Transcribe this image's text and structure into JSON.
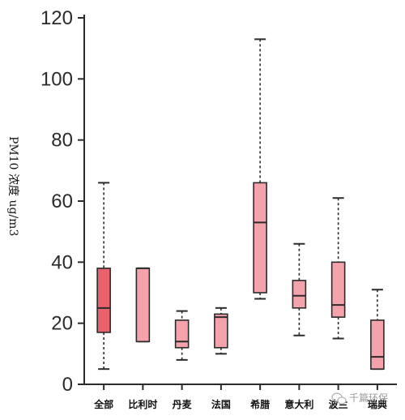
{
  "chart_data": {
    "type": "box",
    "title": "",
    "ylabel": "PM10 浓度   ug/m3",
    "xlabel": "",
    "ylim": [
      0,
      120
    ],
    "yticks": [
      0,
      20,
      40,
      60,
      80,
      100,
      120
    ],
    "grid": false,
    "legend": "none",
    "colors": {
      "first_box": "#e8616b",
      "boxes": "#f4a3aa",
      "stroke": "#2b2b2b"
    },
    "categories": [
      "全部",
      "比利时",
      "丹麦",
      "法国",
      "希腊",
      "意大利",
      "波兰",
      "瑞典"
    ],
    "boxes": [
      {
        "min": 5,
        "q1": 17,
        "median": 25,
        "q3": 38,
        "max": 66
      },
      {
        "min": 14,
        "q1": 14,
        "median": 38,
        "q3": 38,
        "max": 38
      },
      {
        "min": 8,
        "q1": 12,
        "median": 14,
        "q3": 21,
        "max": 24
      },
      {
        "min": 10,
        "q1": 12,
        "median": 22,
        "q3": 23,
        "max": 25
      },
      {
        "min": 28,
        "q1": 30,
        "median": 53,
        "q3": 66,
        "max": 113
      },
      {
        "min": 16,
        "q1": 25,
        "median": 29,
        "q3": 34,
        "max": 46
      },
      {
        "min": 15,
        "q1": 22,
        "median": 26,
        "q3": 40,
        "max": 61
      },
      {
        "min": 5,
        "q1": 5,
        "median": 9,
        "q3": 21,
        "max": 31
      }
    ]
  },
  "watermark": {
    "icon": "wechat-icon",
    "text": "千篇环保"
  }
}
